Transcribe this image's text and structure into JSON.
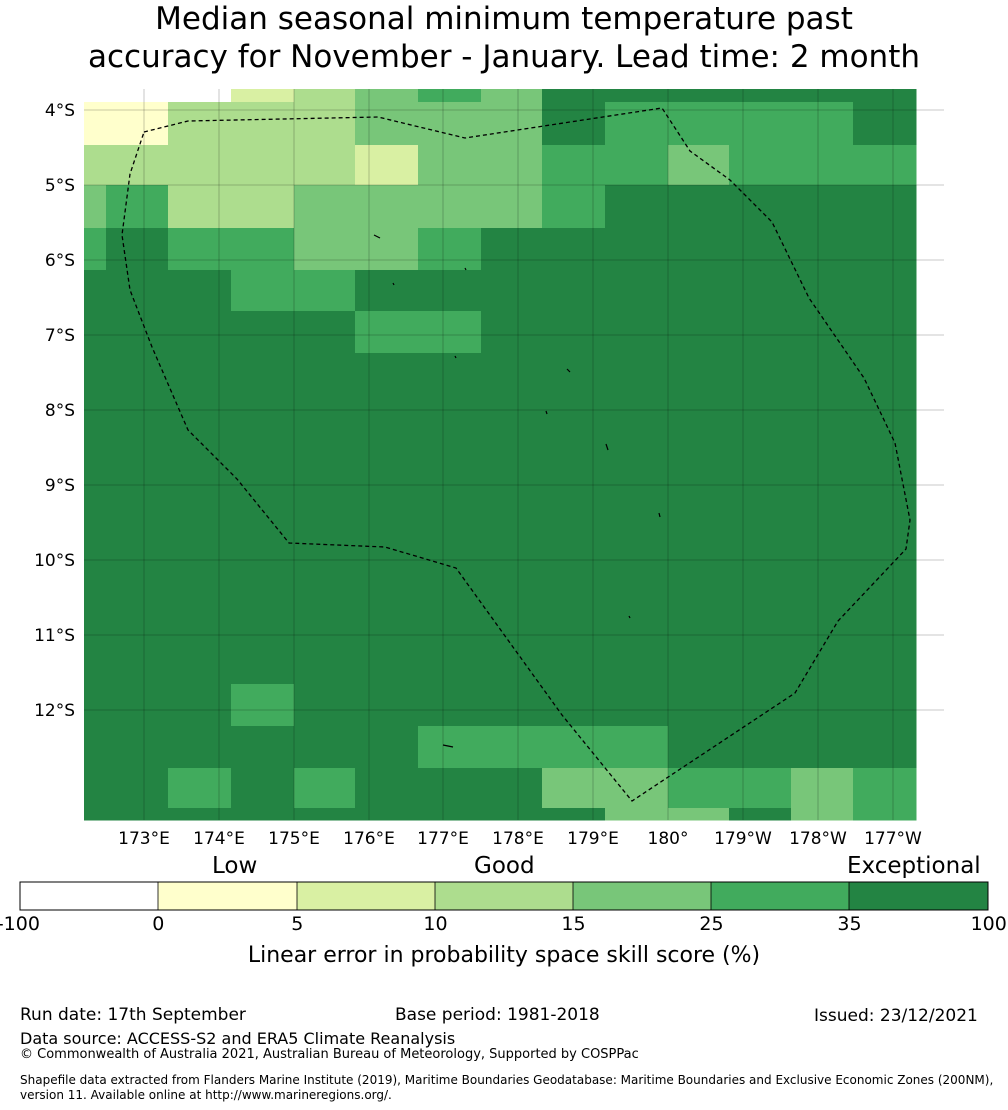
{
  "title": {
    "line1": "Median seasonal minimum temperature past",
    "line2": "accuracy for November - January. Lead time: 2 month"
  },
  "map": {
    "lat_labels": [
      "4°S",
      "5°S",
      "6°S",
      "7°S",
      "8°S",
      "9°S",
      "10°S",
      "11°S",
      "12°S"
    ],
    "lon_labels": [
      "173°E",
      "174°E",
      "175°E",
      "176°E",
      "177°E",
      "178°E",
      "179°E",
      "180°",
      "179°W",
      "178°W",
      "177°W"
    ],
    "grid_classes": [
      [
        0,
        0,
        0,
        2,
        3,
        4,
        5,
        4,
        6,
        6,
        6,
        6,
        6,
        6
      ],
      [
        1,
        1,
        3,
        3,
        3,
        4,
        4,
        4,
        6,
        5,
        5,
        5,
        5,
        6
      ],
      [
        3,
        3,
        3,
        3,
        3,
        2,
        4,
        4,
        5,
        5,
        4,
        5,
        5,
        5
      ],
      [
        4,
        5,
        3,
        3,
        4,
        4,
        4,
        4,
        5,
        6,
        6,
        6,
        6,
        6
      ],
      [
        5,
        6,
        5,
        5,
        4,
        4,
        5,
        6,
        6,
        6,
        6,
        6,
        6,
        6
      ],
      [
        6,
        6,
        6,
        5,
        5,
        6,
        6,
        6,
        6,
        6,
        6,
        6,
        6,
        6
      ],
      [
        6,
        6,
        6,
        6,
        6,
        5,
        5,
        6,
        6,
        6,
        6,
        6,
        6,
        6
      ],
      [
        6,
        6,
        6,
        6,
        6,
        6,
        6,
        6,
        6,
        6,
        6,
        6,
        6,
        6
      ],
      [
        6,
        6,
        6,
        6,
        6,
        6,
        6,
        6,
        6,
        6,
        6,
        6,
        6,
        6
      ],
      [
        6,
        6,
        6,
        6,
        6,
        6,
        6,
        6,
        6,
        6,
        6,
        6,
        6,
        6
      ],
      [
        6,
        6,
        6,
        6,
        6,
        6,
        6,
        6,
        6,
        6,
        6,
        6,
        6,
        6
      ],
      [
        6,
        6,
        6,
        6,
        6,
        6,
        6,
        6,
        6,
        6,
        6,
        6,
        6,
        6
      ],
      [
        6,
        6,
        6,
        6,
        6,
        6,
        6,
        6,
        6,
        6,
        6,
        6,
        6,
        6
      ],
      [
        6,
        6,
        6,
        6,
        6,
        6,
        6,
        6,
        6,
        6,
        6,
        6,
        6,
        6
      ],
      [
        6,
        6,
        6,
        6,
        6,
        6,
        6,
        6,
        6,
        6,
        6,
        6,
        6,
        6
      ],
      [
        6,
        6,
        6,
        5,
        6,
        6,
        6,
        6,
        6,
        6,
        6,
        6,
        6,
        6
      ],
      [
        6,
        6,
        6,
        6,
        6,
        6,
        5,
        5,
        5,
        5,
        6,
        6,
        6,
        6
      ],
      [
        6,
        6,
        5,
        6,
        5,
        6,
        6,
        6,
        4,
        4,
        5,
        5,
        4,
        5
      ],
      [
        6,
        6,
        6,
        6,
        6,
        6,
        6,
        6,
        6,
        4,
        4,
        6,
        4,
        5
      ]
    ]
  },
  "legend": {
    "categories": [
      "Low",
      "Good",
      "Exceptional"
    ],
    "ticks": [
      "-100",
      "0",
      "5",
      "10",
      "15",
      "25",
      "35",
      "100"
    ],
    "colors": [
      "#ffffff",
      "#ffffcc",
      "#d9f0a3",
      "#addd8e",
      "#78c679",
      "#41ab5d",
      "#238443"
    ],
    "title": "Linear error in probability space skill score (%)"
  },
  "footer": {
    "run_date": "Run date: 17th September",
    "base_period": "Base period: 1981-2018",
    "issued": "Issued: 23/12/2021",
    "data_source": "Data source: ACCESS-S2 and ERA5 Climate Reanalysis",
    "copyright": "© Commonwealth of Australia 2021, Australian Bureau of Meteorology, Supported by COSPPac",
    "shapefile_line1": "Shapefile data extracted from Flanders Marine Institute (2019), Maritime Boundaries Geodatabase: Maritime Boundaries and Exclusive Economic Zones (200NM),",
    "shapefile_line2": "version 11. Available online at http://www.marineregions.org/."
  }
}
